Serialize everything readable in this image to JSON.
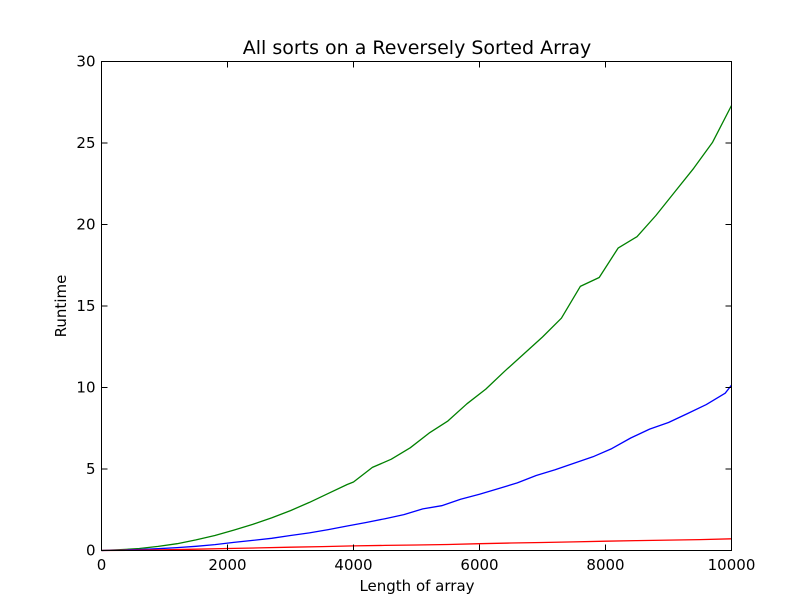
{
  "chart_data": {
    "type": "line",
    "title": "All sorts on a Reversely Sorted Array",
    "xlabel": "Length of array",
    "ylabel": "Runtime",
    "xlim": [
      0,
      10000
    ],
    "ylim": [
      0,
      30
    ],
    "xticks": [
      0,
      2000,
      4000,
      6000,
      8000,
      10000
    ],
    "yticks": [
      0,
      5,
      10,
      15,
      20,
      25,
      30
    ],
    "grid": false,
    "series": [
      {
        "color": "#008000",
        "x": [
          0,
          300,
          600,
          900,
          1200,
          1500,
          1800,
          2100,
          2400,
          2700,
          3000,
          3300,
          3600,
          3900,
          4000,
          4300,
          4600,
          4900,
          5200,
          5500,
          5800,
          6100,
          6400,
          6700,
          7000,
          7300,
          7600,
          7900,
          8200,
          8500,
          8800,
          9100,
          9400,
          9700,
          10000
        ],
        "y": [
          0,
          0.05,
          0.12,
          0.25,
          0.42,
          0.65,
          0.92,
          1.25,
          1.6,
          2.0,
          2.45,
          2.95,
          3.5,
          4.05,
          4.2,
          5.1,
          5.6,
          6.3,
          7.2,
          7.95,
          9.0,
          9.9,
          11.0,
          12.05,
          13.1,
          14.25,
          16.2,
          16.75,
          18.55,
          19.25,
          20.55,
          22.0,
          23.45,
          25.05,
          27.3
        ]
      },
      {
        "color": "#0000ff",
        "x": [
          0,
          300,
          600,
          900,
          1200,
          1500,
          1800,
          2100,
          2400,
          2700,
          3000,
          3300,
          3600,
          3900,
          4200,
          4500,
          4800,
          5100,
          5400,
          5700,
          6000,
          6300,
          6600,
          6900,
          7200,
          7500,
          7800,
          8100,
          8400,
          8700,
          9000,
          9300,
          9600,
          9900,
          10000
        ],
        "y": [
          0,
          0.02,
          0.06,
          0.11,
          0.18,
          0.26,
          0.36,
          0.5,
          0.62,
          0.75,
          0.92,
          1.08,
          1.28,
          1.5,
          1.72,
          1.95,
          2.2,
          2.55,
          2.75,
          3.15,
          3.45,
          3.8,
          4.15,
          4.6,
          4.95,
          5.35,
          5.75,
          6.25,
          6.9,
          7.45,
          7.85,
          8.4,
          8.95,
          9.65,
          10.15
        ]
      },
      {
        "color": "#ff0000",
        "x": [
          0,
          500,
          1000,
          1500,
          2000,
          2500,
          3000,
          3500,
          4000,
          4500,
          5000,
          5500,
          6000,
          6500,
          7000,
          7500,
          8000,
          8500,
          9000,
          9500,
          10000
        ],
        "y": [
          0,
          0.01,
          0.04,
          0.08,
          0.12,
          0.16,
          0.2,
          0.24,
          0.28,
          0.31,
          0.34,
          0.37,
          0.42,
          0.46,
          0.49,
          0.53,
          0.57,
          0.61,
          0.64,
          0.67,
          0.72
        ]
      }
    ]
  }
}
